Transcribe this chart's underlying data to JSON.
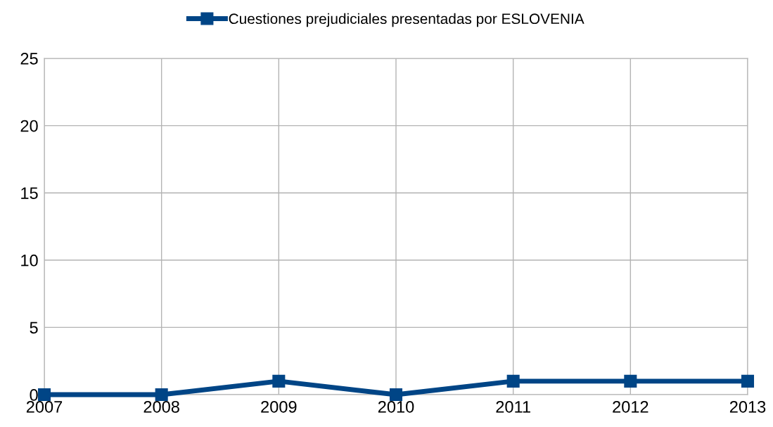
{
  "chart_data": {
    "type": "line",
    "categories": [
      "2007",
      "2008",
      "2009",
      "2010",
      "2011",
      "2012",
      "2013"
    ],
    "series": [
      {
        "name": "Cuestiones prejudiciales presentadas por ESLOVENIA",
        "color": "#004586",
        "values": [
          0,
          0,
          1,
          0,
          1,
          1,
          1
        ]
      }
    ],
    "ylim": [
      0,
      25
    ],
    "yticks": [
      0,
      5,
      10,
      15,
      20,
      25
    ],
    "grid": true,
    "legend": "top",
    "marker": "square",
    "line_style": "solid"
  }
}
